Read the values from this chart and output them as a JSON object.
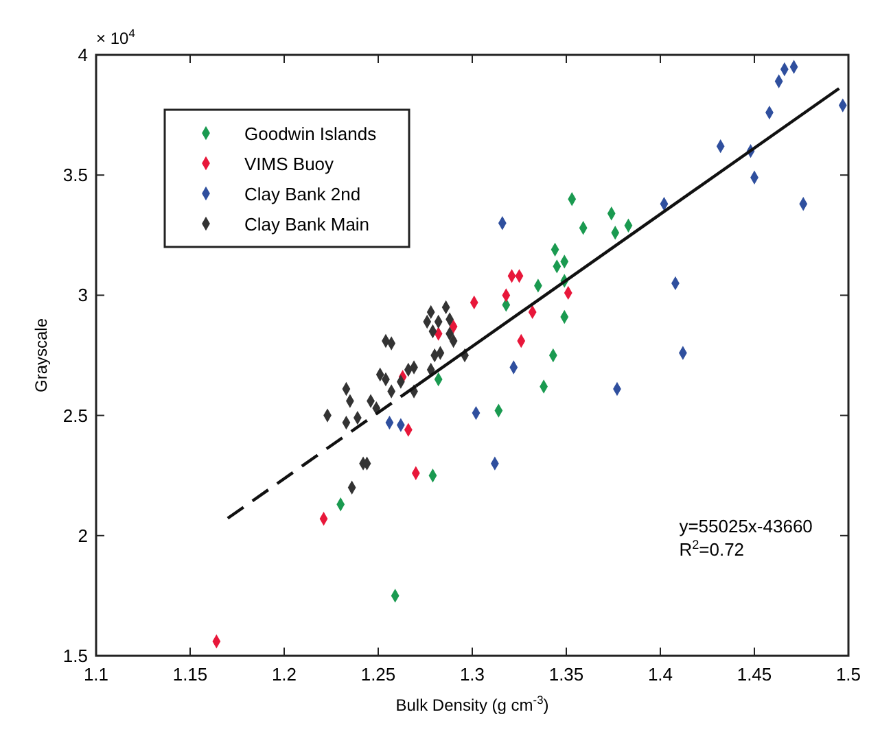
{
  "chart_data": {
    "type": "scatter",
    "xlabel": "Bulk Density (g cm$^{-3}$)",
    "ylabel": "Grayscale",
    "xlim": [
      1.1,
      1.5
    ],
    "xticks": [
      1.1,
      1.15,
      1.2,
      1.25,
      1.3,
      1.35,
      1.4,
      1.45,
      1.5
    ],
    "ylim": [
      1.5,
      4
    ],
    "yticks": [
      1.5,
      2,
      2.5,
      3,
      3.5,
      4
    ],
    "grid": false,
    "legend": "top left",
    "marker": "diamond",
    "annotations": [
      "× 10$^{4}$",
      "y=55025x-43660",
      "R$^{2}$=0.72"
    ],
    "series": [
      {
        "name": "Goodwin Islands",
        "color": "#1a9a50",
        "x": [
          1.259,
          1.23,
          1.282,
          1.279,
          1.314,
          1.318,
          1.335,
          1.338,
          1.343,
          1.344,
          1.345,
          1.349,
          1.349,
          1.349,
          1.353,
          1.359,
          1.374,
          1.376,
          1.383
        ],
        "values": [
          1.75,
          2.13,
          2.65,
          2.25,
          2.52,
          2.96,
          3.04,
          2.62,
          2.75,
          3.19,
          3.12,
          3.14,
          3.06,
          2.91,
          3.4,
          3.28,
          3.34,
          3.26,
          3.29
        ]
      },
      {
        "name": "VIMS Buoy",
        "color": "#e8173a",
        "x": [
          1.164,
          1.221,
          1.27,
          1.266,
          1.263,
          1.282,
          1.29,
          1.301,
          1.318,
          1.321,
          1.325,
          1.326,
          1.332,
          1.351
        ],
        "values": [
          1.56,
          2.07,
          2.26,
          2.44,
          2.66,
          2.84,
          2.87,
          2.97,
          3.0,
          3.08,
          3.08,
          2.81,
          2.93,
          3.01
        ]
      },
      {
        "name": "Clay Bank 2nd",
        "color": "#2f4f9e",
        "x": [
          1.256,
          1.262,
          1.302,
          1.312,
          1.316,
          1.322,
          1.377,
          1.402,
          1.408,
          1.412,
          1.432,
          1.448,
          1.45,
          1.458,
          1.463,
          1.466,
          1.471,
          1.476,
          1.497
        ],
        "values": [
          2.47,
          2.46,
          2.51,
          2.3,
          3.3,
          2.7,
          2.61,
          3.38,
          3.05,
          2.76,
          3.62,
          3.6,
          3.49,
          3.76,
          3.89,
          3.94,
          3.95,
          3.38,
          3.79
        ]
      },
      {
        "name": "Clay Bank Main",
        "color": "#333333",
        "x": [
          1.223,
          1.233,
          1.235,
          1.233,
          1.239,
          1.236,
          1.242,
          1.244,
          1.246,
          1.249,
          1.251,
          1.254,
          1.254,
          1.257,
          1.257,
          1.262,
          1.266,
          1.269,
          1.269,
          1.276,
          1.278,
          1.279,
          1.278,
          1.28,
          1.283,
          1.282,
          1.286,
          1.288,
          1.288,
          1.29,
          1.296
        ],
        "values": [
          2.5,
          2.61,
          2.56,
          2.47,
          2.49,
          2.2,
          2.3,
          2.3,
          2.56,
          2.53,
          2.67,
          2.65,
          2.81,
          2.8,
          2.6,
          2.64,
          2.69,
          2.7,
          2.6,
          2.89,
          2.93,
          2.85,
          2.69,
          2.75,
          2.76,
          2.89,
          2.95,
          2.9,
          2.84,
          2.81,
          2.75
        ]
      },
      {
        "type": "line",
        "marker": "none",
        "line_style": "dashed",
        "color": "#111111",
        "x": [
          1.17,
          1.27
        ],
        "values": [
          2.072,
          2.622
        ]
      },
      {
        "type": "line",
        "marker": "none",
        "line_style": "solid",
        "color": "#111111",
        "x": [
          1.27,
          1.495
        ],
        "values": [
          2.622,
          3.86
        ]
      }
    ]
  }
}
